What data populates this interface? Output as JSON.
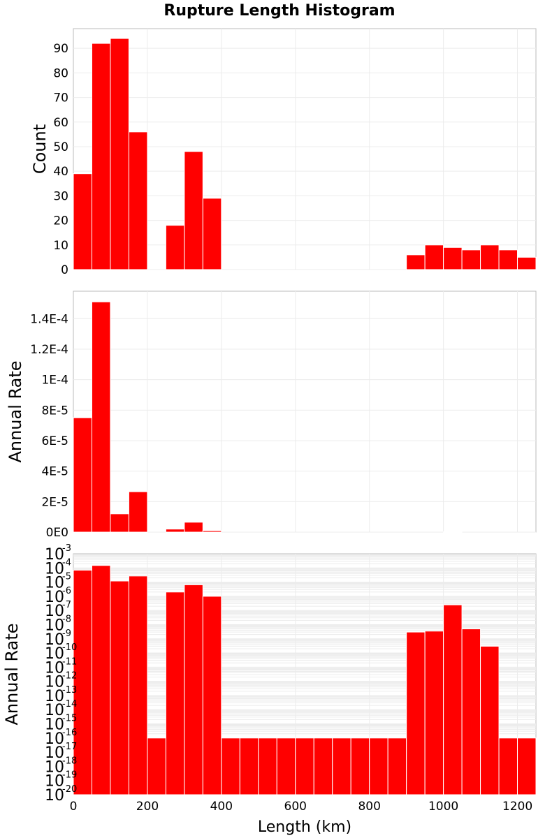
{
  "chart_data": {
    "title": "Rupture Length Histogram",
    "xlabel": "Length (km)",
    "xlim": [
      0,
      1250
    ],
    "xticks": [
      0,
      200,
      400,
      600,
      800,
      1000,
      1200
    ],
    "bin_width": 50,
    "bar_color": "#ff0000",
    "grid": true,
    "panels": [
      {
        "type": "bar",
        "ylabel": "Count",
        "scale": "linear",
        "ylim": [
          0,
          98
        ],
        "yticks": [
          0,
          10,
          20,
          30,
          40,
          50,
          60,
          70,
          80,
          90
        ],
        "ytick_labels": [
          "0",
          "10",
          "20",
          "30",
          "40",
          "50",
          "60",
          "70",
          "80",
          "90"
        ],
        "x": [
          25,
          75,
          125,
          175,
          225,
          275,
          325,
          375,
          425,
          475,
          525,
          575,
          625,
          675,
          725,
          775,
          825,
          875,
          925,
          975,
          1025,
          1075,
          1125,
          1175,
          1225
        ],
        "values": [
          39,
          92,
          94,
          56,
          0,
          18,
          48,
          29,
          0,
          0,
          0,
          0,
          0,
          0,
          0,
          0,
          0,
          0,
          6,
          10,
          9,
          8,
          10,
          8,
          5
        ]
      },
      {
        "type": "bar",
        "ylabel": "Annual Rate",
        "scale": "linear",
        "ylim": [
          0,
          0.000158
        ],
        "yticks": [
          0,
          2e-05,
          4e-05,
          6e-05,
          8e-05,
          0.0001,
          0.00012,
          0.00014
        ],
        "ytick_labels": [
          "0E0",
          "2E-5",
          "4E-5",
          "6E-5",
          "8E-5",
          "1E-4",
          "1.2E-4",
          "1.4E-4"
        ],
        "x": [
          25,
          75,
          125,
          175,
          225,
          275,
          325,
          375,
          425,
          475,
          525,
          575,
          625,
          675,
          725,
          775,
          825,
          875,
          925,
          975,
          1025,
          1075,
          1125,
          1175,
          1225
        ],
        "values": [
          7.5e-05,
          0.000151,
          1.2e-05,
          2.65e-05,
          0,
          2e-06,
          6.5e-06,
          1e-06,
          0,
          0,
          0,
          0,
          0,
          0,
          0,
          0,
          0,
          0,
          0,
          0,
          3e-07,
          0,
          0,
          0,
          0
        ]
      },
      {
        "type": "bar",
        "ylabel": "Annual Rate",
        "scale": "log",
        "ylim": [
          1e-20,
          0.001
        ],
        "ytick_base": "10",
        "ytick_exponents": [
          "-20",
          "-19",
          "-18",
          "-17",
          "-16",
          "-15",
          "-14",
          "-13",
          "-12",
          "-11",
          "-10",
          "-9",
          "-8",
          "-7",
          "-6",
          "-5",
          "-4",
          "-3"
        ],
        "x": [
          25,
          75,
          125,
          175,
          225,
          275,
          325,
          375,
          425,
          475,
          525,
          575,
          625,
          675,
          725,
          775,
          825,
          875,
          925,
          975,
          1025,
          1075,
          1125,
          1175,
          1225
        ],
        "values": [
          7e-05,
          0.00015,
          1.2e-05,
          2.7e-05,
          1e-16,
          2e-06,
          6.5e-06,
          1e-06,
          1e-16,
          1e-16,
          1e-16,
          1e-16,
          1e-16,
          1e-16,
          1e-16,
          1e-16,
          1e-16,
          1e-16,
          3e-09,
          3.5e-09,
          2.5e-07,
          5e-09,
          3e-10,
          1e-16,
          1e-16
        ]
      }
    ]
  }
}
